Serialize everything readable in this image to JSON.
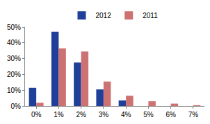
{
  "chart_data": {
    "type": "bar",
    "categories": [
      "0%",
      "1%",
      "2%",
      "3%",
      "4%",
      "5%",
      "6%",
      "7%"
    ],
    "series": [
      {
        "name": "2012",
        "color": "#1f3f99",
        "values": [
          11.5,
          47,
          27.5,
          10.5,
          3.5,
          0,
          0,
          0
        ]
      },
      {
        "name": "2011",
        "color": "#cd7272",
        "values": [
          2,
          36.5,
          34.5,
          15.5,
          6.5,
          3,
          1.5,
          0.5
        ]
      }
    ],
    "ylim": [
      0,
      50
    ],
    "yticks": [
      {
        "value": 0,
        "label": "0%"
      },
      {
        "value": 10,
        "label": "10%"
      },
      {
        "value": 20,
        "label": "20%"
      },
      {
        "value": 30,
        "label": "30%"
      },
      {
        "value": 40,
        "label": "40%"
      },
      {
        "value": 50,
        "label": "50%"
      }
    ],
    "grid": false,
    "legend": "top"
  }
}
